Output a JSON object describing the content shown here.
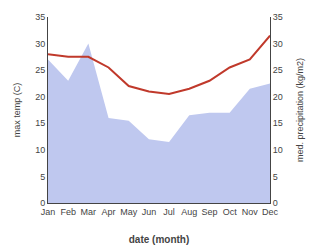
{
  "chart_data": {
    "type": "line",
    "categories": [
      "Jan",
      "Feb",
      "Mar",
      "Apr",
      "May",
      "Jun",
      "Jul",
      "Aug",
      "Sep",
      "Oct",
      "Nov",
      "Dec"
    ],
    "series": [
      {
        "type": "area",
        "axis": "y2",
        "color": "#bfc8ef",
        "values": [
          27.0,
          23.0,
          30.0,
          16.0,
          15.5,
          12.0,
          11.5,
          16.5,
          17.0,
          17.0,
          21.5,
          22.5
        ]
      },
      {
        "type": "line",
        "color": "#c0392b",
        "values": [
          28.0,
          27.5,
          27.5,
          25.5,
          22.0,
          21.0,
          20.5,
          21.5,
          23.0,
          25.5,
          27.0,
          31.5
        ]
      }
    ],
    "xlabel": "date (month)",
    "ylabel": "max temp (C)",
    "y2label": "med. precipitation (kg/m2)",
    "ylim": [
      0,
      35
    ],
    "yticks": [
      0,
      5,
      10,
      15,
      20,
      25,
      30,
      35
    ],
    "y2lim": [
      0,
      35
    ],
    "y2ticks": [
      0,
      5,
      10,
      15,
      20,
      25,
      30,
      35
    ],
    "grid": false
  }
}
